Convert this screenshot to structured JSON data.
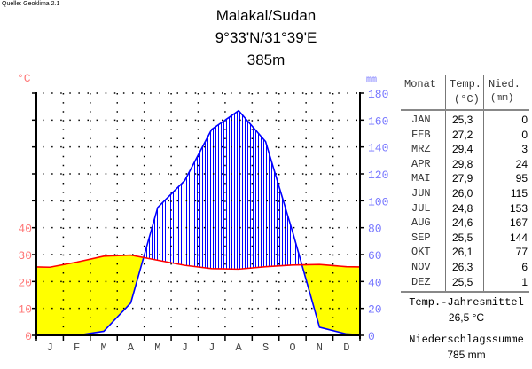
{
  "source": "Quelle: Geoklima 2.1",
  "header": {
    "station": "Malakal/Sudan",
    "coordinates": "9°33'N/31°39'E",
    "elevation": "385m"
  },
  "table": {
    "col_month": "Monat",
    "col_temp": "Temp.",
    "col_temp_unit": "(°C)",
    "col_precip": "Nied.",
    "col_precip_unit": "(mm)",
    "rows": [
      {
        "month": "JAN",
        "temp": "25,3",
        "precip": "0"
      },
      {
        "month": "FEB",
        "temp": "27,2",
        "precip": "0"
      },
      {
        "month": "MRZ",
        "temp": "29,4",
        "precip": "3"
      },
      {
        "month": "APR",
        "temp": "29,8",
        "precip": "24"
      },
      {
        "month": "MAI",
        "temp": "27,9",
        "precip": "95"
      },
      {
        "month": "JUN",
        "temp": "26,0",
        "precip": "115"
      },
      {
        "month": "JUL",
        "temp": "24,8",
        "precip": "153"
      },
      {
        "month": "AUG",
        "temp": "24,6",
        "precip": "167"
      },
      {
        "month": "SEP",
        "temp": "25,5",
        "precip": "144"
      },
      {
        "month": "OKT",
        "temp": "26,1",
        "precip": "77"
      },
      {
        "month": "NOV",
        "temp": "26,3",
        "precip": "6"
      },
      {
        "month": "DEZ",
        "temp": "25,5",
        "precip": "1"
      }
    ],
    "mean_temp_label": "Temp.-Jahresmittel",
    "mean_temp_value": "26,5 °C",
    "precip_sum_label": "Niederschlagssumme",
    "precip_sum_value": "785 mm"
  },
  "chart_data": {
    "type": "line",
    "title": "Malakal/Sudan",
    "categories": [
      "J",
      "F",
      "M",
      "A",
      "M",
      "J",
      "J",
      "A",
      "S",
      "O",
      "N",
      "D"
    ],
    "series": [
      {
        "name": "Temperatur",
        "unit": "°C",
        "color": "#ff0000",
        "values": [
          25.3,
          27.2,
          29.4,
          29.8,
          27.9,
          26.0,
          24.8,
          24.6,
          25.5,
          26.1,
          26.3,
          25.5
        ]
      },
      {
        "name": "Niederschlag",
        "unit": "mm",
        "color": "#0000ff",
        "values": [
          0,
          0,
          3,
          24,
          95,
          115,
          153,
          167,
          144,
          77,
          6,
          1
        ]
      }
    ],
    "ylabel_left": "°C",
    "ylabel_right": "mm",
    "yticks_left": [
      0,
      10,
      20,
      30,
      40
    ],
    "yticks_right": [
      0,
      20,
      40,
      60,
      80,
      100,
      120,
      140,
      160,
      180
    ],
    "ylim_left": [
      0,
      90
    ],
    "ylim_right": [
      0,
      180
    ],
    "grid": true,
    "arid_color": "#ffff00",
    "humid_color": "#0000ff"
  }
}
